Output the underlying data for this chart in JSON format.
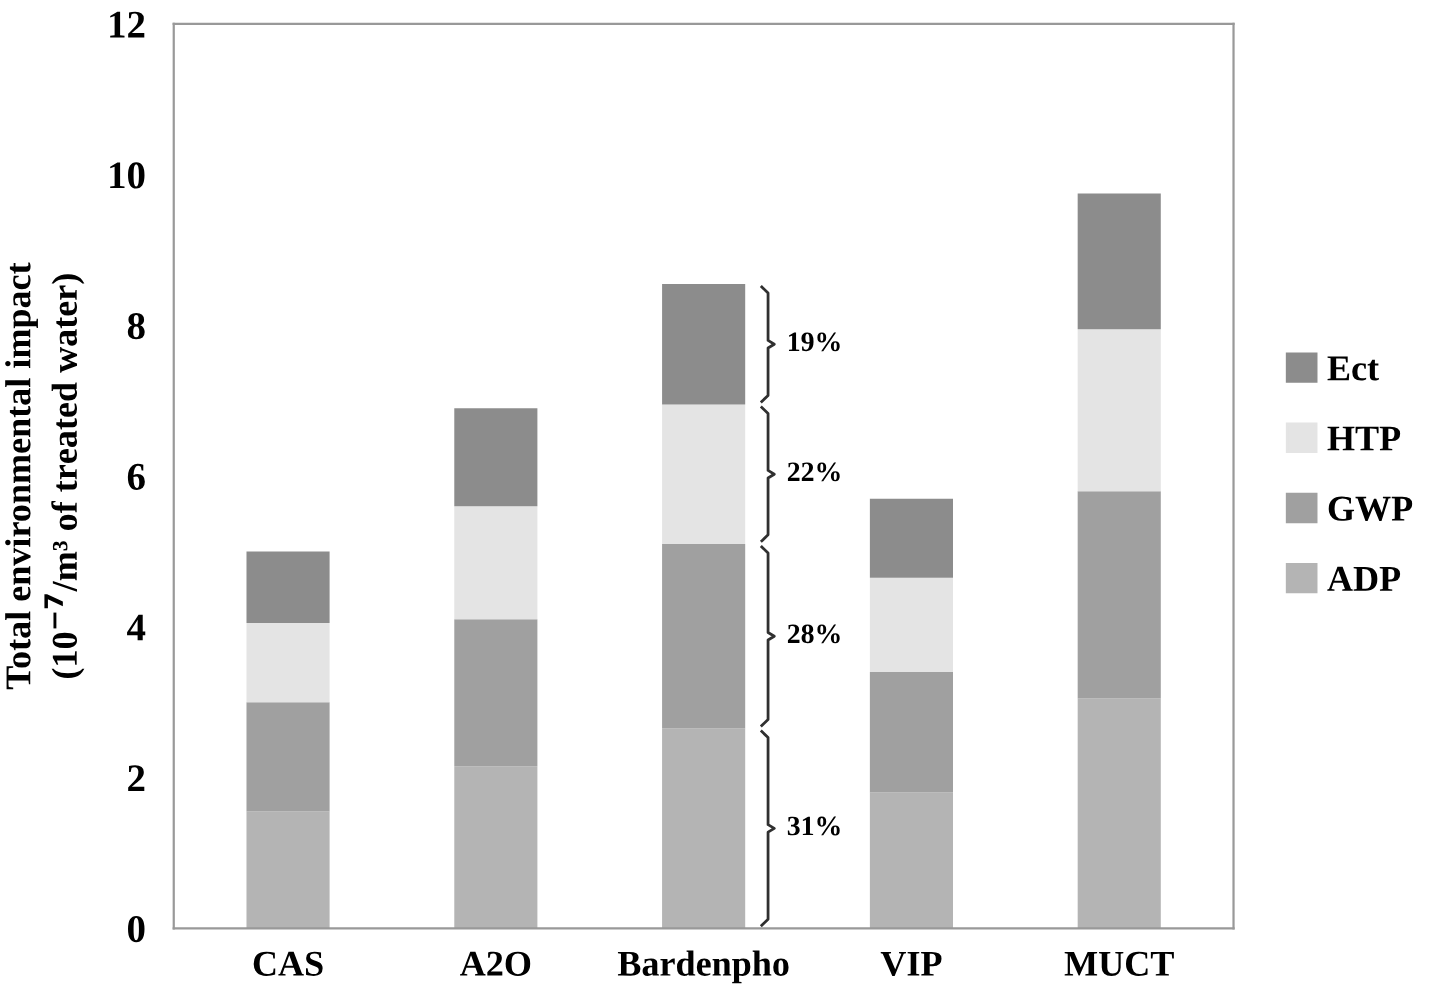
{
  "chart_data": {
    "type": "bar",
    "stacked": true,
    "ylabel": "Total environmental impact\n(10$^{−7}$/m³ of treated water)",
    "categories": [
      "CAS",
      "A2O",
      "Bardenpho",
      "VIP",
      "MUCT"
    ],
    "series": [
      {
        "name": "ADP",
        "color": "#b4b4b4",
        "values": [
          1.55,
          2.15,
          2.65,
          1.8,
          3.05
        ]
      },
      {
        "name": "GWP",
        "color": "#a0a0a0",
        "values": [
          1.45,
          1.95,
          2.45,
          1.6,
          2.75
        ]
      },
      {
        "name": "HTP",
        "color": "#e4e4e4",
        "values": [
          1.05,
          1.5,
          1.85,
          1.25,
          2.15
        ]
      },
      {
        "name": "Ect",
        "color": "#8c8c8c",
        "values": [
          0.95,
          1.3,
          1.6,
          1.05,
          1.8
        ]
      }
    ],
    "ylim": [
      0,
      12
    ],
    "yticks": [
      0,
      2,
      4,
      6,
      8,
      10,
      12
    ],
    "grid": false,
    "legend": "right",
    "annotations": [
      "31%",
      "28%",
      "22%",
      "19%"
    ]
  }
}
